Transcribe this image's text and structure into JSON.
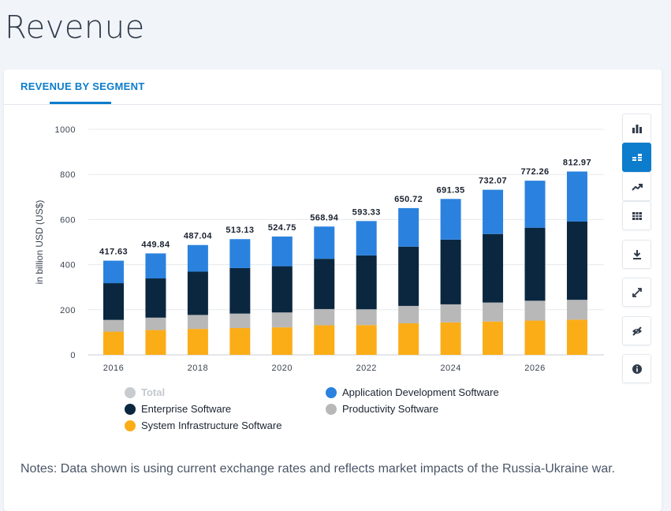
{
  "page": {
    "title": "Revenue"
  },
  "card": {
    "tab_label": "REVENUE BY SEGMENT"
  },
  "toolbar": {
    "buttons": [
      {
        "name": "bar-chart-icon",
        "active": false
      },
      {
        "name": "stacked-bar-icon",
        "active": true
      },
      {
        "name": "trend-line-icon",
        "active": false
      },
      {
        "name": "table-icon",
        "active": false
      },
      {
        "name": "download-icon",
        "active": false
      },
      {
        "name": "expand-icon",
        "active": false
      },
      {
        "name": "hide-icon",
        "active": false
      },
      {
        "name": "info-icon",
        "active": false
      }
    ]
  },
  "colors": {
    "system_infrastructure": "#fbad18",
    "productivity": "#b8b8b8",
    "enterprise": "#0b2740",
    "application_development": "#2a82de",
    "total_inactive": "#c8cbd0",
    "grid": "#e6e9ed",
    "axis_text": "#3b4350"
  },
  "chart_data": {
    "type": "bar",
    "stacked": true,
    "ylabel": "in billion USD (US$)",
    "ylim": [
      0,
      1000
    ],
    "yticks": [
      0,
      200,
      400,
      600,
      800,
      1000
    ],
    "x": [
      2016,
      2017,
      2018,
      2019,
      2020,
      2021,
      2022,
      2023,
      2024,
      2025,
      2026,
      2027
    ],
    "xtick_labels": [
      "2016",
      "2018",
      "2020",
      "2022",
      "2024",
      "2026"
    ],
    "xtick_years": [
      2016,
      2018,
      2020,
      2022,
      2024,
      2026
    ],
    "totals": [
      417.63,
      449.84,
      487.04,
      513.13,
      524.75,
      568.94,
      593.33,
      650.72,
      691.35,
      732.07,
      772.26,
      812.97
    ],
    "total_labels": [
      "417.63",
      "449.84",
      "487.04",
      "513.13",
      "524.75",
      "568.94",
      "593.33",
      "650.72",
      "691.35",
      "732.07",
      "772.26",
      "812.97"
    ],
    "series": [
      {
        "name": "System Infrastructure Software",
        "color_key": "system_infrastructure",
        "values": [
          103,
          110,
          115,
          119,
          122,
          131,
          132,
          140,
          144,
          148,
          152,
          156
        ]
      },
      {
        "name": "Productivity Software",
        "color_key": "productivity",
        "values": [
          52,
          55,
          62,
          64,
          66,
          72,
          70,
          77,
          80,
          84,
          88,
          88
        ]
      },
      {
        "name": "Enterprise Software",
        "color_key": "enterprise",
        "values": [
          163,
          174,
          192,
          202,
          205,
          223,
          239,
          263,
          287,
          304,
          324,
          347
        ]
      },
      {
        "name": "Application Development Software",
        "color_key": "application_development",
        "values": [
          99.63,
          110.84,
          118.04,
          128.13,
          131.75,
          142.94,
          152.33,
          170.72,
          180.35,
          196.07,
          208.26,
          221.97
        ]
      }
    ],
    "legend": {
      "entries": [
        {
          "label": "Total",
          "color_key": "total_inactive",
          "inactive": true
        },
        {
          "label": "Application Development Software",
          "color_key": "application_development",
          "inactive": false
        },
        {
          "label": "Enterprise Software",
          "color_key": "enterprise",
          "inactive": false
        },
        {
          "label": "Productivity Software",
          "color_key": "productivity",
          "inactive": false
        },
        {
          "label": "System Infrastructure Software",
          "color_key": "system_infrastructure",
          "inactive": false
        }
      ]
    },
    "grid": true
  },
  "notes": "Notes: Data shown is using current exchange rates and reflects market impacts of the Russia-Ukraine war."
}
